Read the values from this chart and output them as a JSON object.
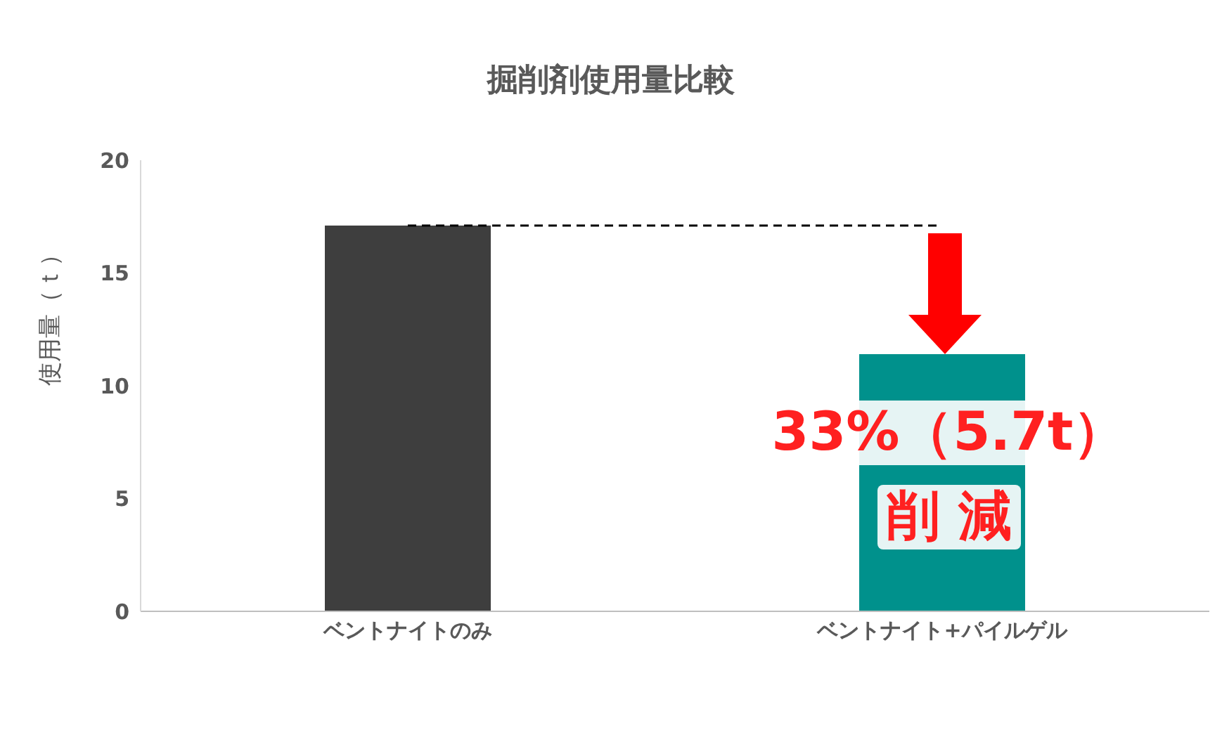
{
  "chart_data": {
    "type": "bar",
    "title": "掘削剤使用量比較",
    "ylabel": "使用量（ｔ）",
    "categories": [
      "ベントナイトのみ",
      "ベントナイト+パイルゲル"
    ],
    "values": [
      17.1,
      11.4
    ],
    "colors": [
      "#3e3e3e",
      "#00918c"
    ],
    "ylim": [
      0,
      20
    ],
    "yticks": [
      0,
      5,
      10,
      15,
      20
    ],
    "ref_lines": [
      {
        "axis": "y",
        "value": 17.1,
        "color": "#000000",
        "line_style": "dashed"
      }
    ],
    "annotations": [
      "33%（5.7t）",
      "削 減"
    ]
  }
}
